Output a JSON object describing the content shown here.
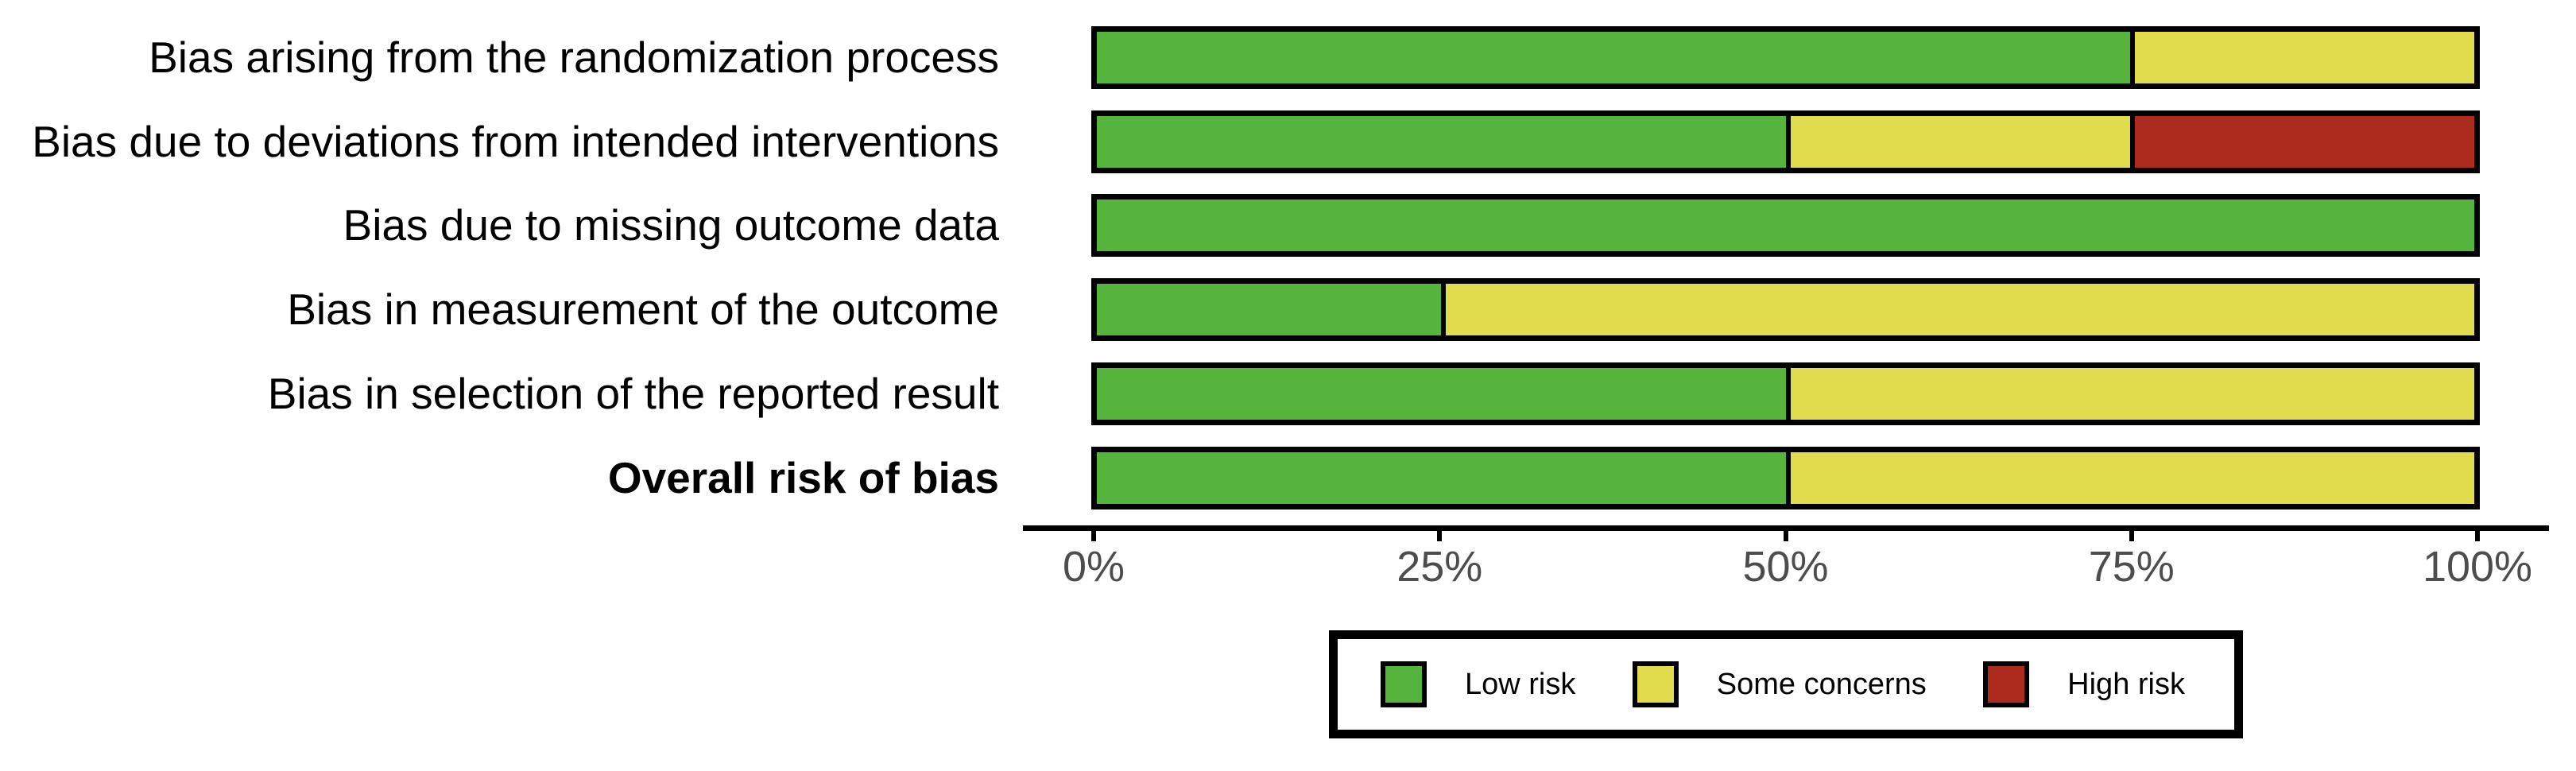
{
  "chart_data": {
    "type": "bar",
    "subtype": "horizontal-stacked-percent",
    "title": "",
    "xlabel": "",
    "ylabel": "",
    "categories": [
      "Bias arising from the randomization process",
      "Bias due to deviations from intended interventions",
      "Bias due to missing outcome data",
      "Bias in measurement of the outcome",
      "Bias in selection of the reported result",
      "Overall risk of bias"
    ],
    "bold_category_index": 5,
    "series": [
      {
        "name": "Low risk",
        "color": "#54B43C",
        "values": [
          75,
          50,
          100,
          25,
          50,
          50
        ]
      },
      {
        "name": "Some concerns",
        "color": "#E0DC4E",
        "values": [
          25,
          25,
          0,
          75,
          50,
          50
        ]
      },
      {
        "name": "High risk",
        "color": "#AC2A1E",
        "values": [
          0,
          25,
          0,
          0,
          0,
          0
        ]
      }
    ],
    "x_ticks": [
      {
        "label": "0%",
        "value": 0
      },
      {
        "label": "25%",
        "value": 25
      },
      {
        "label": "50%",
        "value": 50
      },
      {
        "label": "75%",
        "value": 75
      },
      {
        "label": "100%",
        "value": 100
      }
    ],
    "xlim": [
      0,
      100
    ],
    "grid": false,
    "legend_position": "bottom",
    "legend_entries": [
      "Low risk",
      "Some concerns",
      "High risk"
    ]
  },
  "colors": {
    "background": "#FFFFFF",
    "bar_border": "#000000",
    "segment_divider": "#000000",
    "axis_line": "#000000",
    "tick_mark": "#000000",
    "tick_label": "#4D4D4D",
    "category_label": "#000000",
    "legend_border": "#000000",
    "legend_text": "#000000",
    "low_risk": "#54B43C",
    "some_concerns": "#E0DC4E",
    "high_risk": "#AC2A1E"
  }
}
